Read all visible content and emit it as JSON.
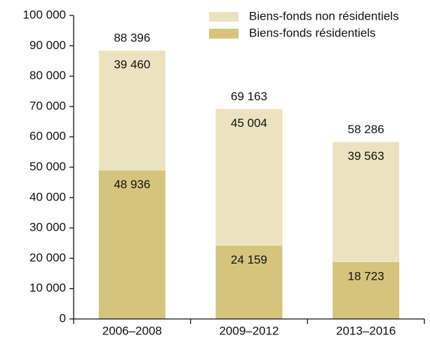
{
  "chart_data": {
    "type": "stacked_bar",
    "categories": [
      "2006–2008",
      "2009–2012",
      "2013–2016"
    ],
    "series": [
      {
        "name": "Biens-fonds résidentiels",
        "color": "#d5c47c",
        "values": [
          48936,
          24159,
          18723
        ],
        "value_labels": [
          "48 936",
          "24 159",
          "18 723"
        ]
      },
      {
        "name": "Biens-fonds non résidentiels",
        "color": "#ebe3bf",
        "values": [
          39460,
          45004,
          39563
        ],
        "value_labels": [
          "39 460",
          "45 004",
          "39 563"
        ]
      }
    ],
    "totals": [
      88396,
      69163,
      58286
    ],
    "total_labels": [
      "88 396",
      "69 163",
      "58 286"
    ],
    "ylim": [
      0,
      100000
    ],
    "yticks": [
      0,
      {
        "value": 10000,
        "label": "10 000"
      },
      {
        "value": 20000,
        "label": "20 000"
      },
      {
        "value": 30000,
        "label": "30 000"
      },
      {
        "value": 40000,
        "label": "40 000"
      },
      {
        "value": 50000,
        "label": "50 000"
      },
      {
        "value": 60000,
        "label": "60 000"
      },
      {
        "value": 70000,
        "label": "70 000"
      },
      {
        "value": 80000,
        "label": "80 000"
      },
      {
        "value": 90000,
        "label": "90 000"
      },
      {
        "value": 100000,
        "label": "100 000"
      }
    ],
    "legend": "top-right"
  }
}
